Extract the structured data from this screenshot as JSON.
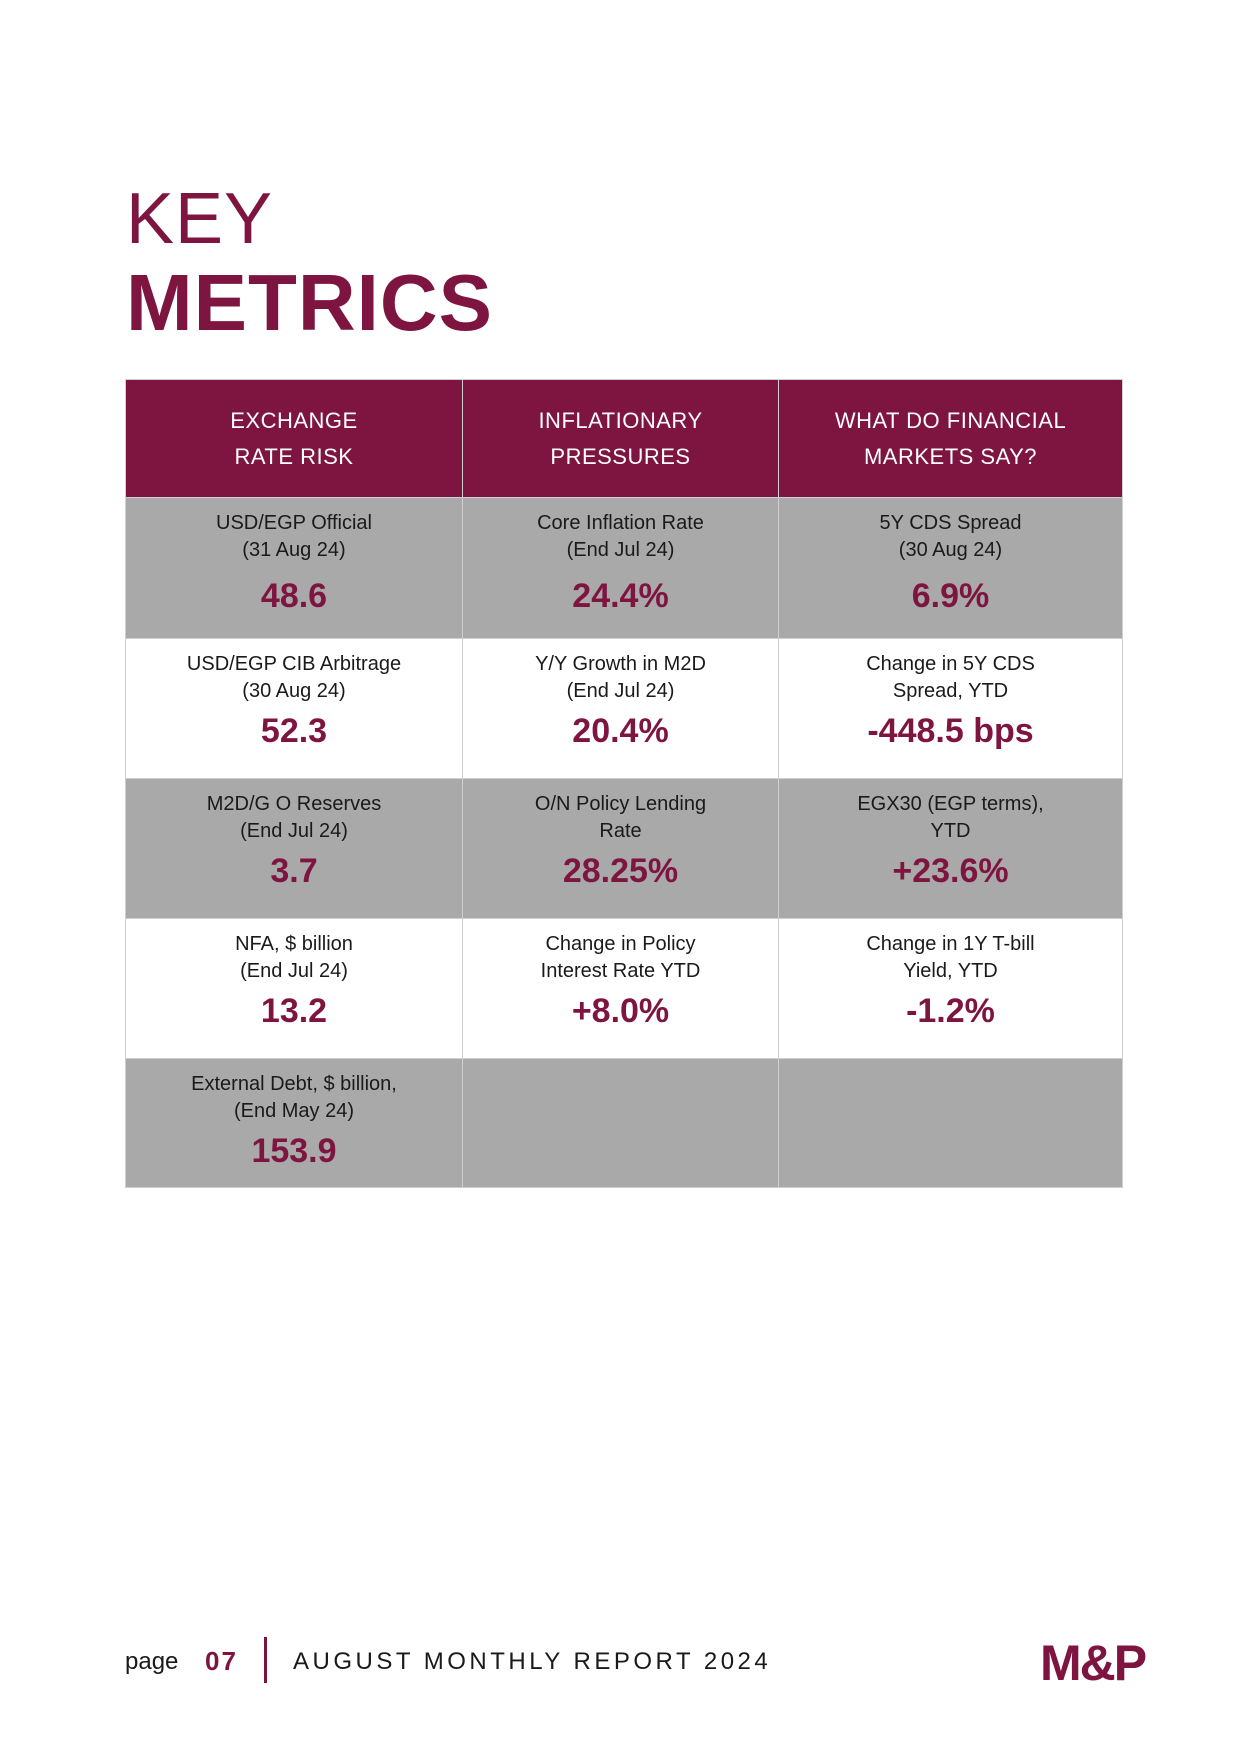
{
  "title": {
    "line1": "KEY",
    "line2": "METRICS"
  },
  "table": {
    "headers": [
      {
        "line1": "EXCHANGE",
        "line2": "RATE RISK"
      },
      {
        "line1": "INFLATIONARY",
        "line2": "PRESSURES"
      },
      {
        "line1": "WHAT DO FINANCIAL",
        "line2": "MARKETS SAY?"
      }
    ],
    "rows": [
      [
        {
          "label1": "USD/EGP Official",
          "label2": "(31 Aug 24)",
          "value": "48.6"
        },
        {
          "label1": "Core Inflation Rate",
          "label2": "(End Jul 24)",
          "value": "24.4%"
        },
        {
          "label1": "5Y CDS Spread",
          "label2": "(30 Aug 24)",
          "value": "6.9%"
        }
      ],
      [
        {
          "label1": "USD/EGP CIB Arbitrage",
          "label2": "(30 Aug 24)",
          "value": "52.3"
        },
        {
          "label1": "Y/Y Growth in M2D",
          "label2": "(End Jul 24)",
          "value": "20.4%"
        },
        {
          "label1": "Change in 5Y CDS",
          "label2": "Spread, YTD",
          "value": "-448.5 bps"
        }
      ],
      [
        {
          "label1": "M2D/G O Reserves",
          "label2": "(End Jul 24)",
          "value": "3.7"
        },
        {
          "label1": "O/N Policy Lending",
          "label2": "Rate",
          "value": "28.25%"
        },
        {
          "label1": "EGX30 (EGP terms),",
          "label2": "YTD",
          "value": "+23.6%"
        }
      ],
      [
        {
          "label1": "NFA, $ billion",
          "label2": "(End Jul 24)",
          "value": "13.2"
        },
        {
          "label1": "Change in Policy",
          "label2": "Interest Rate YTD",
          "value": "+8.0%"
        },
        {
          "label1": "Change in 1Y T-bill",
          "label2": "Yield, YTD",
          "value": "-1.2%"
        }
      ],
      [
        {
          "label1": "External Debt, $ billion,",
          "label2": "(End May 24)",
          "value": "153.9"
        }
      ]
    ]
  },
  "footer": {
    "page_word": "page",
    "page_number": "07",
    "report_title": "AUGUST MONTHLY REPORT 2024",
    "logo_text": "M&P"
  },
  "colors": {
    "accent": "#7e1440",
    "gray_row": "#a9a9a9"
  }
}
